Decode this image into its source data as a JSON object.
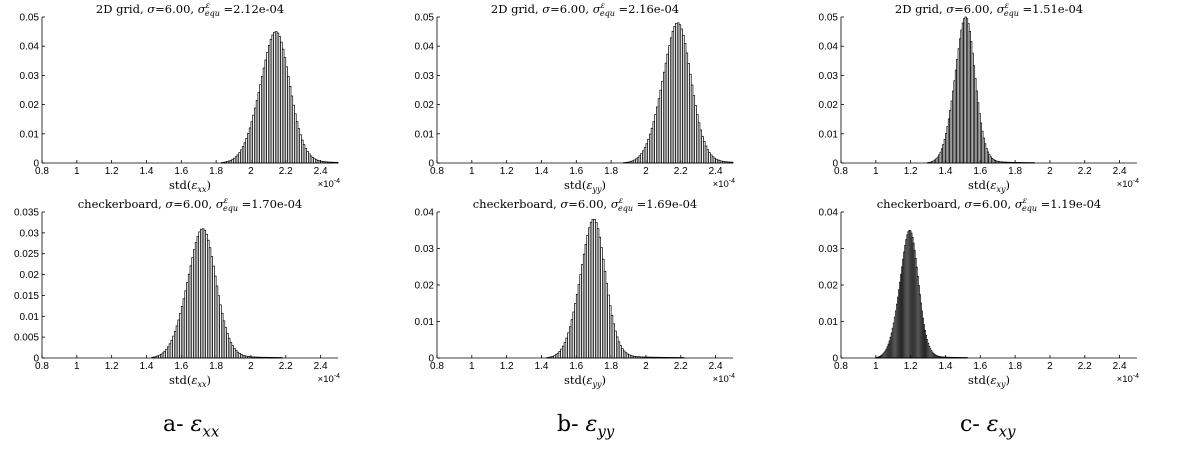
{
  "figure": {
    "captions": [
      {
        "prefix": "a- ",
        "symbol": "ε",
        "sub": "xx"
      },
      {
        "prefix": "b- ",
        "symbol": "ε",
        "sub": "yy"
      },
      {
        "prefix": "c- ",
        "symbol": "ε",
        "sub": "xy"
      }
    ],
    "bar_color": "#000000",
    "bar_fill": "#ffffff"
  },
  "chart_data": [
    {
      "id": "grid-xx",
      "type": "bar",
      "title": {
        "prefix": "2D grid, ",
        "sigma": "σ",
        "sigma_value": "=6.00, ",
        "equ_base": "σ",
        "equ_sup": "ε",
        "equ_sub": "equ",
        "equ_value": " =2.12e-04"
      },
      "xlabel": {
        "pre": "std(",
        "sym": "ε",
        "sub": "xx",
        "post": ")"
      },
      "x_multiplier": {
        "base": "×10",
        "exp": "-4"
      },
      "xlim": [
        0.8,
        2.5
      ],
      "xticks": [
        "0.8",
        "1",
        "1.2",
        "1.4",
        "1.6",
        "1.8",
        "2",
        "2.2",
        "2.4"
      ],
      "ylim": [
        0,
        0.05
      ],
      "yticks": [
        "0",
        "0.01",
        "0.02",
        "0.03",
        "0.04",
        "0.05"
      ],
      "distribution": {
        "mean": 2.12,
        "std": 0.088,
        "peak": 0.045,
        "skew": 2.5,
        "tail_amp": 0.02,
        "tail_scale": 0.28
      },
      "bin_width": 0.01
    },
    {
      "id": "grid-yy",
      "type": "bar",
      "title": {
        "prefix": "2D grid, ",
        "sigma": "σ",
        "sigma_value": "=6.00, ",
        "equ_base": "σ",
        "equ_sup": "ε",
        "equ_sub": "equ",
        "equ_value": " =2.16e-04"
      },
      "xlabel": {
        "pre": "std(",
        "sym": "ε",
        "sub": "yy",
        "post": ")"
      },
      "x_multiplier": {
        "base": "×10",
        "exp": "-4"
      },
      "xlim": [
        0.8,
        2.5
      ],
      "xticks": [
        "0.8",
        "1",
        "1.2",
        "1.4",
        "1.6",
        "1.8",
        "2",
        "2.2",
        "2.4"
      ],
      "ylim": [
        0,
        0.05
      ],
      "yticks": [
        "0",
        "0.01",
        "0.02",
        "0.03",
        "0.04",
        "0.05"
      ],
      "distribution": {
        "mean": 2.16,
        "std": 0.085,
        "peak": 0.048,
        "skew": 2.5,
        "tail_amp": 0.02,
        "tail_scale": 0.28
      },
      "bin_width": 0.01
    },
    {
      "id": "grid-xy",
      "type": "bar",
      "title": {
        "prefix": "2D grid, ",
        "sigma": "σ",
        "sigma_value": "=6.00, ",
        "equ_base": "σ",
        "equ_sup": "ε",
        "equ_sub": "equ",
        "equ_value": " =1.51e-04"
      },
      "xlabel": {
        "pre": "std(",
        "sym": "ε",
        "sub": "xy",
        "post": ")"
      },
      "x_multiplier": {
        "base": "×10",
        "exp": "-4"
      },
      "xlim": [
        0.8,
        2.5
      ],
      "xticks": [
        "0.8",
        "1",
        "1.2",
        "1.4",
        "1.6",
        "1.8",
        "2",
        "2.2",
        "2.4"
      ],
      "ylim": [
        0,
        0.05
      ],
      "yticks": [
        "0",
        "0.01",
        "0.02",
        "0.03",
        "0.04",
        "0.05"
      ],
      "distribution": {
        "mean": 1.5,
        "std": 0.06,
        "peak": 0.05,
        "skew": 2.5,
        "tail_amp": 0.02,
        "tail_scale": 0.2
      },
      "bin_width": 0.008
    },
    {
      "id": "checker-xx",
      "type": "bar",
      "title": {
        "prefix": "checkerboard, ",
        "sigma": "σ",
        "sigma_value": "=6.00, ",
        "equ_base": "σ",
        "equ_sup": "ε",
        "equ_sub": "equ",
        "equ_value": " =1.70e-04"
      },
      "xlabel": {
        "pre": "std(",
        "sym": "ε",
        "sub": "xx",
        "post": ")"
      },
      "x_multiplier": {
        "base": "×10",
        "exp": "-4"
      },
      "xlim": [
        0.8,
        2.5
      ],
      "xticks": [
        "0.8",
        "1",
        "1.2",
        "1.4",
        "1.6",
        "1.8",
        "2",
        "2.2",
        "2.4"
      ],
      "ylim": [
        0,
        0.035
      ],
      "yticks": [
        "0",
        "0.005",
        "0.01",
        "0.015",
        "0.02",
        "0.025",
        "0.03",
        "0.035"
      ],
      "distribution": {
        "mean": 1.7,
        "std": 0.085,
        "peak": 0.031,
        "skew": 2.5,
        "tail_amp": 0.02,
        "tail_scale": 0.3
      },
      "bin_width": 0.01
    },
    {
      "id": "checker-yy",
      "type": "bar",
      "title": {
        "prefix": "checkerboard, ",
        "sigma": "σ",
        "sigma_value": "=6.00, ",
        "equ_base": "σ",
        "equ_sup": "ε",
        "equ_sub": "equ",
        "equ_value": " =1.69e-04"
      },
      "xlabel": {
        "pre": "std(",
        "sym": "ε",
        "sub": "yy",
        "post": ")"
      },
      "x_multiplier": {
        "base": "×10",
        "exp": "-4"
      },
      "xlim": [
        0.8,
        2.5
      ],
      "xticks": [
        "0.8",
        "1",
        "1.2",
        "1.4",
        "1.6",
        "1.8",
        "2",
        "2.2",
        "2.4"
      ],
      "ylim": [
        0,
        0.04
      ],
      "yticks": [
        "0",
        "0.01",
        "0.02",
        "0.03",
        "0.04"
      ],
      "distribution": {
        "mean": 1.68,
        "std": 0.075,
        "peak": 0.038,
        "skew": 2.5,
        "tail_amp": 0.02,
        "tail_scale": 0.3
      },
      "bin_width": 0.01
    },
    {
      "id": "checker-xy",
      "type": "bar",
      "title": {
        "prefix": "checkerboard, ",
        "sigma": "σ",
        "sigma_value": "=6.00, ",
        "equ_base": "σ",
        "equ_sup": "ε",
        "equ_sub": "equ",
        "equ_value": " =1.19e-04"
      },
      "xlabel": {
        "pre": "std(",
        "sym": "ε",
        "sub": "xy",
        "post": ")"
      },
      "x_multiplier": {
        "base": "×10",
        "exp": "-4"
      },
      "xlim": [
        0.8,
        2.5
      ],
      "xticks": [
        "0.8",
        "1",
        "1.2",
        "1.4",
        "1.6",
        "1.8",
        "2",
        "2.2",
        "2.4"
      ],
      "ylim": [
        0,
        0.04
      ],
      "yticks": [
        "0",
        "0.01",
        "0.02",
        "0.03",
        "0.04"
      ],
      "distribution": {
        "mean": 1.18,
        "std": 0.055,
        "peak": 0.035,
        "skew": 2.5,
        "tail_amp": 0.02,
        "tail_scale": 0.2
      },
      "bin_width": 0.006
    }
  ]
}
